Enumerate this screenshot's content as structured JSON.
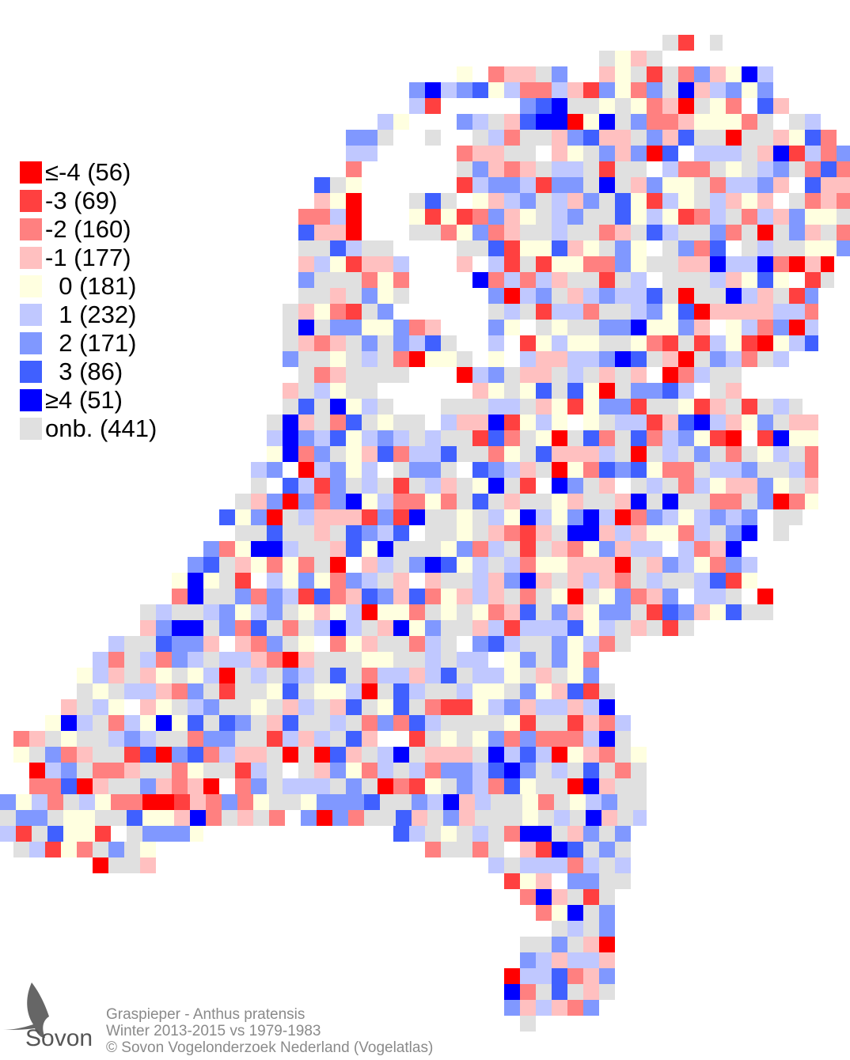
{
  "legend": [
    {
      "label": "≤-4 (56)",
      "color": "#ff0000",
      "count": 56
    },
    {
      "label": "-3 (69)",
      "color": "#ff4040",
      "count": 69
    },
    {
      "label": "-2 (160)",
      "color": "#ff8080",
      "count": 160
    },
    {
      "label": "-1 (177)",
      "color": "#ffc0c0",
      "count": 177
    },
    {
      "label": "  0 (181)",
      "color": "#ffffe0",
      "count": 181
    },
    {
      "label": "  1 (232)",
      "color": "#c0c8ff",
      "count": 232
    },
    {
      "label": "  2 (171)",
      "color": "#8098ff",
      "count": 171
    },
    {
      "label": "  3 (86)",
      "color": "#4060ff",
      "count": 86
    },
    {
      "label": "≥4 (51)",
      "color": "#0000ff",
      "count": 51
    },
    {
      "label": "onb. (441)",
      "color": "#e0e0e0",
      "count": 441
    }
  ],
  "footer": {
    "species": "Graspieper - Anthus pratensis",
    "period": "Winter 2013-2015 vs 1979-1983",
    "copyright": "© Sovon Vogelonderzoek Nederland (Vogelatlas)"
  },
  "logo": {
    "text": "Sovon"
  }
}
